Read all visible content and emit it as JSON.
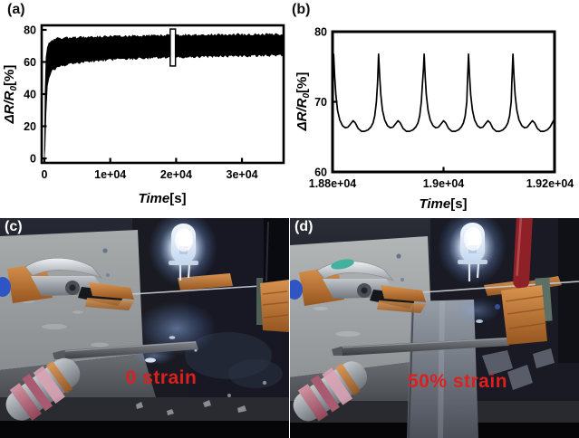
{
  "figure": {
    "panel_a": {
      "label": "(a)"
    },
    "panel_b": {
      "label": "(b)"
    },
    "panel_c": {
      "label": "(c)",
      "caption": "0 strain"
    },
    "panel_d": {
      "label": "(d)",
      "caption": "50% strain"
    }
  },
  "colors": {
    "trace_black": "#000000",
    "caption_red": "#dc1f1f",
    "panel_label_light": "#ffffff",
    "panel_label_dark": "#111111",
    "led_glow_blue": "#cfe2ff",
    "copper_tape": "#c07a3e"
  },
  "chart_data": [
    {
      "id": "a",
      "type": "line",
      "title": "",
      "xlabel": "Time[s]",
      "ylabel": "ΔR/R0[%]",
      "xlabel_parts": [
        {
          "text": "Time",
          "italic": true
        },
        {
          "text": "[s]",
          "italic": false
        }
      ],
      "ylabel_parts": [
        {
          "text": "ΔR/R",
          "italic": true
        },
        {
          "text": "0",
          "italic": true,
          "sub": true
        },
        {
          "text": "[%]",
          "italic": false
        }
      ],
      "grid": false,
      "legend": null,
      "xlim": [
        -413,
        36320
      ],
      "ylim": [
        -2.8,
        82.8
      ],
      "xticks": [
        {
          "v": 0,
          "label": "0"
        },
        {
          "v": 10000,
          "label": "1e+04"
        },
        {
          "v": 20000,
          "label": "2e+04"
        },
        {
          "v": 30000,
          "label": "3e+04"
        }
      ],
      "yticks": [
        {
          "v": 0,
          "label": "0"
        },
        {
          "v": 20,
          "label": "20"
        },
        {
          "v": 40,
          "label": "40"
        },
        {
          "v": 60,
          "label": "60"
        },
        {
          "v": 80,
          "label": "80"
        }
      ],
      "band": {
        "note": "dense oscillating trace shown as envelope band",
        "x": [
          0,
          100,
          250,
          450,
          700,
          1000,
          2000,
          4000,
          7000,
          10000,
          15000,
          20000,
          25000,
          30000,
          34000,
          36400
        ],
        "upper": [
          0,
          40,
          63,
          69,
          71.5,
          73,
          74,
          74.5,
          75,
          75.3,
          75.8,
          76,
          76.3,
          76.5,
          76.6,
          76.8
        ],
        "lower": [
          0,
          6,
          28,
          45,
          51,
          54.5,
          57.5,
          59.5,
          61,
          62,
          63,
          63.5,
          64,
          64.3,
          64.6,
          65
        ]
      },
      "zoom_marker": {
        "x0": 19100,
        "x1": 19900,
        "y0": 57.5,
        "y1": 80.5
      }
    },
    {
      "id": "b",
      "type": "line",
      "title": "",
      "xlabel": "Time[s]",
      "ylabel": "ΔR/R0[%]",
      "xlabel_parts": [
        {
          "text": "Time",
          "italic": true
        },
        {
          "text": "[s]",
          "italic": false
        }
      ],
      "ylabel_parts": [
        {
          "text": "ΔR/R",
          "italic": true
        },
        {
          "text": "0",
          "italic": true,
          "sub": true
        },
        {
          "text": "[%]",
          "italic": false
        }
      ],
      "grid": false,
      "legend": null,
      "xlim": [
        18800,
        19200
      ],
      "ylim": [
        60,
        80
      ],
      "xticks": [
        {
          "v": 18800,
          "label": "1.88e+04"
        },
        {
          "v": 19000,
          "label": "1.9e+04"
        },
        {
          "v": 19200,
          "label": "1.92e+04"
        }
      ],
      "yticks": [
        {
          "v": 60,
          "label": "60"
        },
        {
          "v": 70,
          "label": "70"
        },
        {
          "v": 80,
          "label": "80"
        }
      ],
      "x": [
        18800,
        18801,
        18802,
        18804,
        18806,
        18809,
        18813,
        18818,
        18823,
        18828,
        18833,
        18837,
        18841,
        18846,
        18852,
        18858,
        18864,
        18869,
        18873,
        18876,
        18879,
        18881,
        18882,
        18883,
        18885,
        18887,
        18890,
        18894,
        18899,
        18904,
        18909,
        18914,
        18918,
        18922,
        18927,
        18933,
        18939,
        18945,
        18950,
        18954,
        18957,
        18960,
        18962,
        18964,
        18965,
        18967,
        18969,
        18972,
        18976,
        18981,
        18986,
        18991,
        18996,
        19000,
        19004,
        19009,
        19015,
        19021,
        19027,
        19032,
        19036,
        19039,
        19042,
        19043,
        19044,
        19045,
        19047,
        19049,
        19052,
        19056,
        19061,
        19066,
        19071,
        19076,
        19080,
        19084,
        19089,
        19095,
        19101,
        19107,
        19112,
        19116,
        19119,
        19122,
        19123,
        19124,
        19125,
        19127,
        19129,
        19132,
        19136,
        19141,
        19146,
        19151,
        19156,
        19160,
        19164,
        19169,
        19175,
        19181,
        19187,
        19192,
        19196,
        19200
      ],
      "y": [
        71.5,
        74.5,
        76.8,
        73.5,
        71.0,
        68.8,
        67.4,
        66.6,
        66.3,
        66.4,
        66.9,
        67.3,
        67.0,
        66.2,
        65.8,
        65.8,
        66.0,
        66.4,
        67.0,
        68.0,
        70.0,
        72.5,
        74.5,
        76.8,
        73.5,
        71.0,
        68.8,
        67.4,
        66.6,
        66.3,
        66.4,
        66.9,
        67.3,
        67.0,
        66.2,
        65.8,
        65.8,
        66.0,
        66.4,
        67.0,
        68.0,
        70.0,
        72.5,
        74.8,
        76.8,
        73.5,
        71.0,
        68.8,
        67.4,
        66.6,
        66.3,
        66.4,
        66.9,
        67.3,
        67.0,
        66.2,
        65.8,
        65.8,
        66.0,
        66.4,
        67.0,
        68.0,
        70.0,
        72.5,
        74.8,
        76.8,
        73.5,
        71.0,
        68.8,
        67.4,
        66.6,
        66.3,
        66.4,
        66.9,
        67.3,
        67.0,
        66.2,
        65.8,
        65.8,
        66.0,
        66.4,
        67.0,
        68.0,
        70.0,
        72.5,
        74.8,
        76.8,
        73.5,
        71.0,
        68.8,
        67.4,
        66.6,
        66.3,
        66.4,
        66.9,
        67.3,
        67.0,
        66.2,
        65.8,
        65.8,
        66.0,
        66.4,
        67.0,
        67.6
      ]
    }
  ]
}
